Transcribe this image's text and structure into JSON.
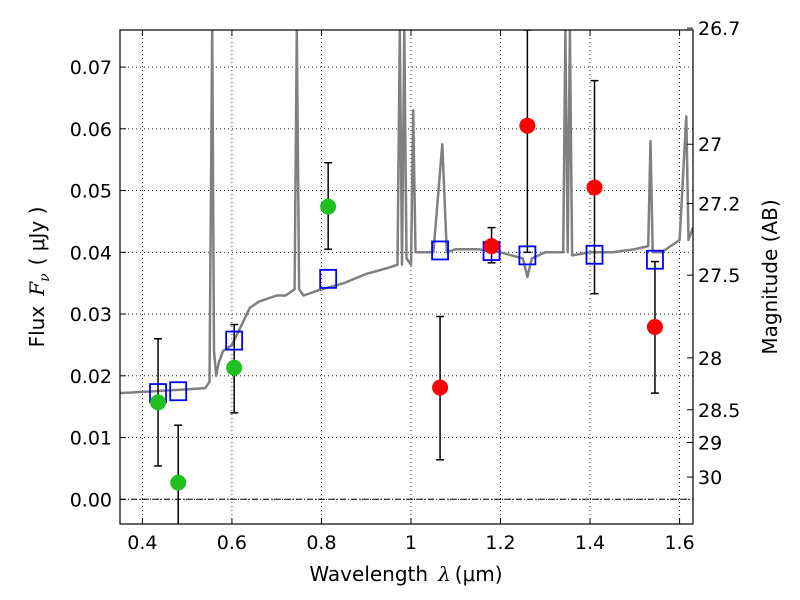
{
  "chart_data": {
    "type": "scatter",
    "xlabel_main": "Wavelength",
    "xlabel_symbol": "λ",
    "xlabel_unit": "(μm)",
    "ylabel_main": "Flux",
    "ylabel_symbol": "F",
    "ylabel_sub": "ν",
    "ylabel_unit": "( μJy )",
    "y2label": "Magnitude (AB)",
    "xlim": [
      0.35,
      1.63
    ],
    "ylim": [
      -0.004,
      0.076
    ],
    "grid": true,
    "x_ticks": [
      {
        "value": 0.4,
        "label": "0.4"
      },
      {
        "value": 0.6,
        "label": "0.6"
      },
      {
        "value": 0.8,
        "label": "0.8"
      },
      {
        "value": 1.0,
        "label": "1"
      },
      {
        "value": 1.2,
        "label": "1.2"
      },
      {
        "value": 1.4,
        "label": "1.4"
      },
      {
        "value": 1.6,
        "label": "1.6"
      }
    ],
    "y_ticks": [
      {
        "value": 0.0,
        "label": "0.00"
      },
      {
        "value": 0.01,
        "label": "0.01"
      },
      {
        "value": 0.02,
        "label": "0.02"
      },
      {
        "value": 0.03,
        "label": "0.03"
      },
      {
        "value": 0.04,
        "label": "0.04"
      },
      {
        "value": 0.05,
        "label": "0.05"
      },
      {
        "value": 0.06,
        "label": "0.06"
      },
      {
        "value": 0.07,
        "label": "0.07"
      }
    ],
    "y2_ticks": [
      {
        "flux": 0.0763,
        "label": "26.7"
      },
      {
        "flux": 0.0575,
        "label": "27"
      },
      {
        "flux": 0.0479,
        "label": "27.2"
      },
      {
        "flux": 0.0363,
        "label": "27.5"
      },
      {
        "flux": 0.0229,
        "label": "28"
      },
      {
        "flux": 0.0145,
        "label": "28.5"
      },
      {
        "flux": 0.0092,
        "label": "29"
      },
      {
        "flux": 0.0036,
        "label": "30"
      }
    ],
    "series": [
      {
        "name": "spectrum",
        "kind": "line",
        "color": "#808080",
        "x": [
          0.35,
          0.4,
          0.45,
          0.5,
          0.54,
          0.55,
          0.556,
          0.56,
          0.565,
          0.57,
          0.58,
          0.6,
          0.62,
          0.64,
          0.66,
          0.7,
          0.72,
          0.74,
          0.745,
          0.75,
          0.76,
          0.8,
          0.85,
          0.9,
          0.95,
          0.97,
          0.975,
          0.98,
          0.985,
          0.99,
          1.0,
          1.005,
          1.01,
          1.05,
          1.07,
          1.08,
          1.1,
          1.15,
          1.2,
          1.25,
          1.26,
          1.27,
          1.3,
          1.34,
          1.345,
          1.35,
          1.355,
          1.36,
          1.4,
          1.45,
          1.5,
          1.53,
          1.535,
          1.54,
          1.56,
          1.58,
          1.6,
          1.615,
          1.62,
          1.63
        ],
        "values": [
          0.0172,
          0.0174,
          0.0176,
          0.0178,
          0.018,
          0.019,
          0.076,
          0.024,
          0.02,
          0.022,
          0.024,
          0.025,
          0.028,
          0.031,
          0.032,
          0.033,
          0.033,
          0.034,
          0.076,
          0.034,
          0.033,
          0.034,
          0.035,
          0.0365,
          0.0375,
          0.038,
          0.076,
          0.038,
          0.076,
          0.039,
          0.038,
          0.063,
          0.04,
          0.04,
          0.0575,
          0.04,
          0.0405,
          0.0405,
          0.04,
          0.039,
          0.036,
          0.039,
          0.04,
          0.04,
          0.076,
          0.04,
          0.076,
          0.0395,
          0.04,
          0.04,
          0.0405,
          0.041,
          0.058,
          0.04,
          0.04,
          0.041,
          0.042,
          0.062,
          0.042,
          0.044
        ]
      },
      {
        "name": "green-detections",
        "kind": "points",
        "color": "#1fc01f",
        "x": [
          0.435,
          0.48,
          0.605,
          0.815
        ],
        "values": [
          0.0157,
          0.0027,
          0.0213,
          0.0474
        ],
        "err_low": [
          0.0054,
          -0.0045,
          0.014,
          0.0405
        ],
        "err_high": [
          0.026,
          0.012,
          0.0283,
          0.0545
        ]
      },
      {
        "name": "red-detections",
        "kind": "points",
        "color": "#ff0000",
        "x": [
          1.065,
          1.18,
          1.26,
          1.41,
          1.545
        ],
        "values": [
          0.0181,
          0.041,
          0.0605,
          0.0505,
          0.0279
        ],
        "err_low": [
          0.0064,
          0.0383,
          0.04,
          0.0333,
          0.0172
        ],
        "err_high": [
          0.0296,
          0.044,
          0.076,
          0.0678,
          0.0385
        ]
      },
      {
        "name": "model-fluxes",
        "kind": "open-squares",
        "color": "#0000ff",
        "x": [
          0.435,
          0.48,
          0.605,
          0.815,
          1.065,
          1.18,
          1.26,
          1.41,
          1.545
        ],
        "values": [
          0.0172,
          0.0175,
          0.0257,
          0.0357,
          0.0403,
          0.0402,
          0.0395,
          0.0396,
          0.0388
        ]
      }
    ]
  }
}
